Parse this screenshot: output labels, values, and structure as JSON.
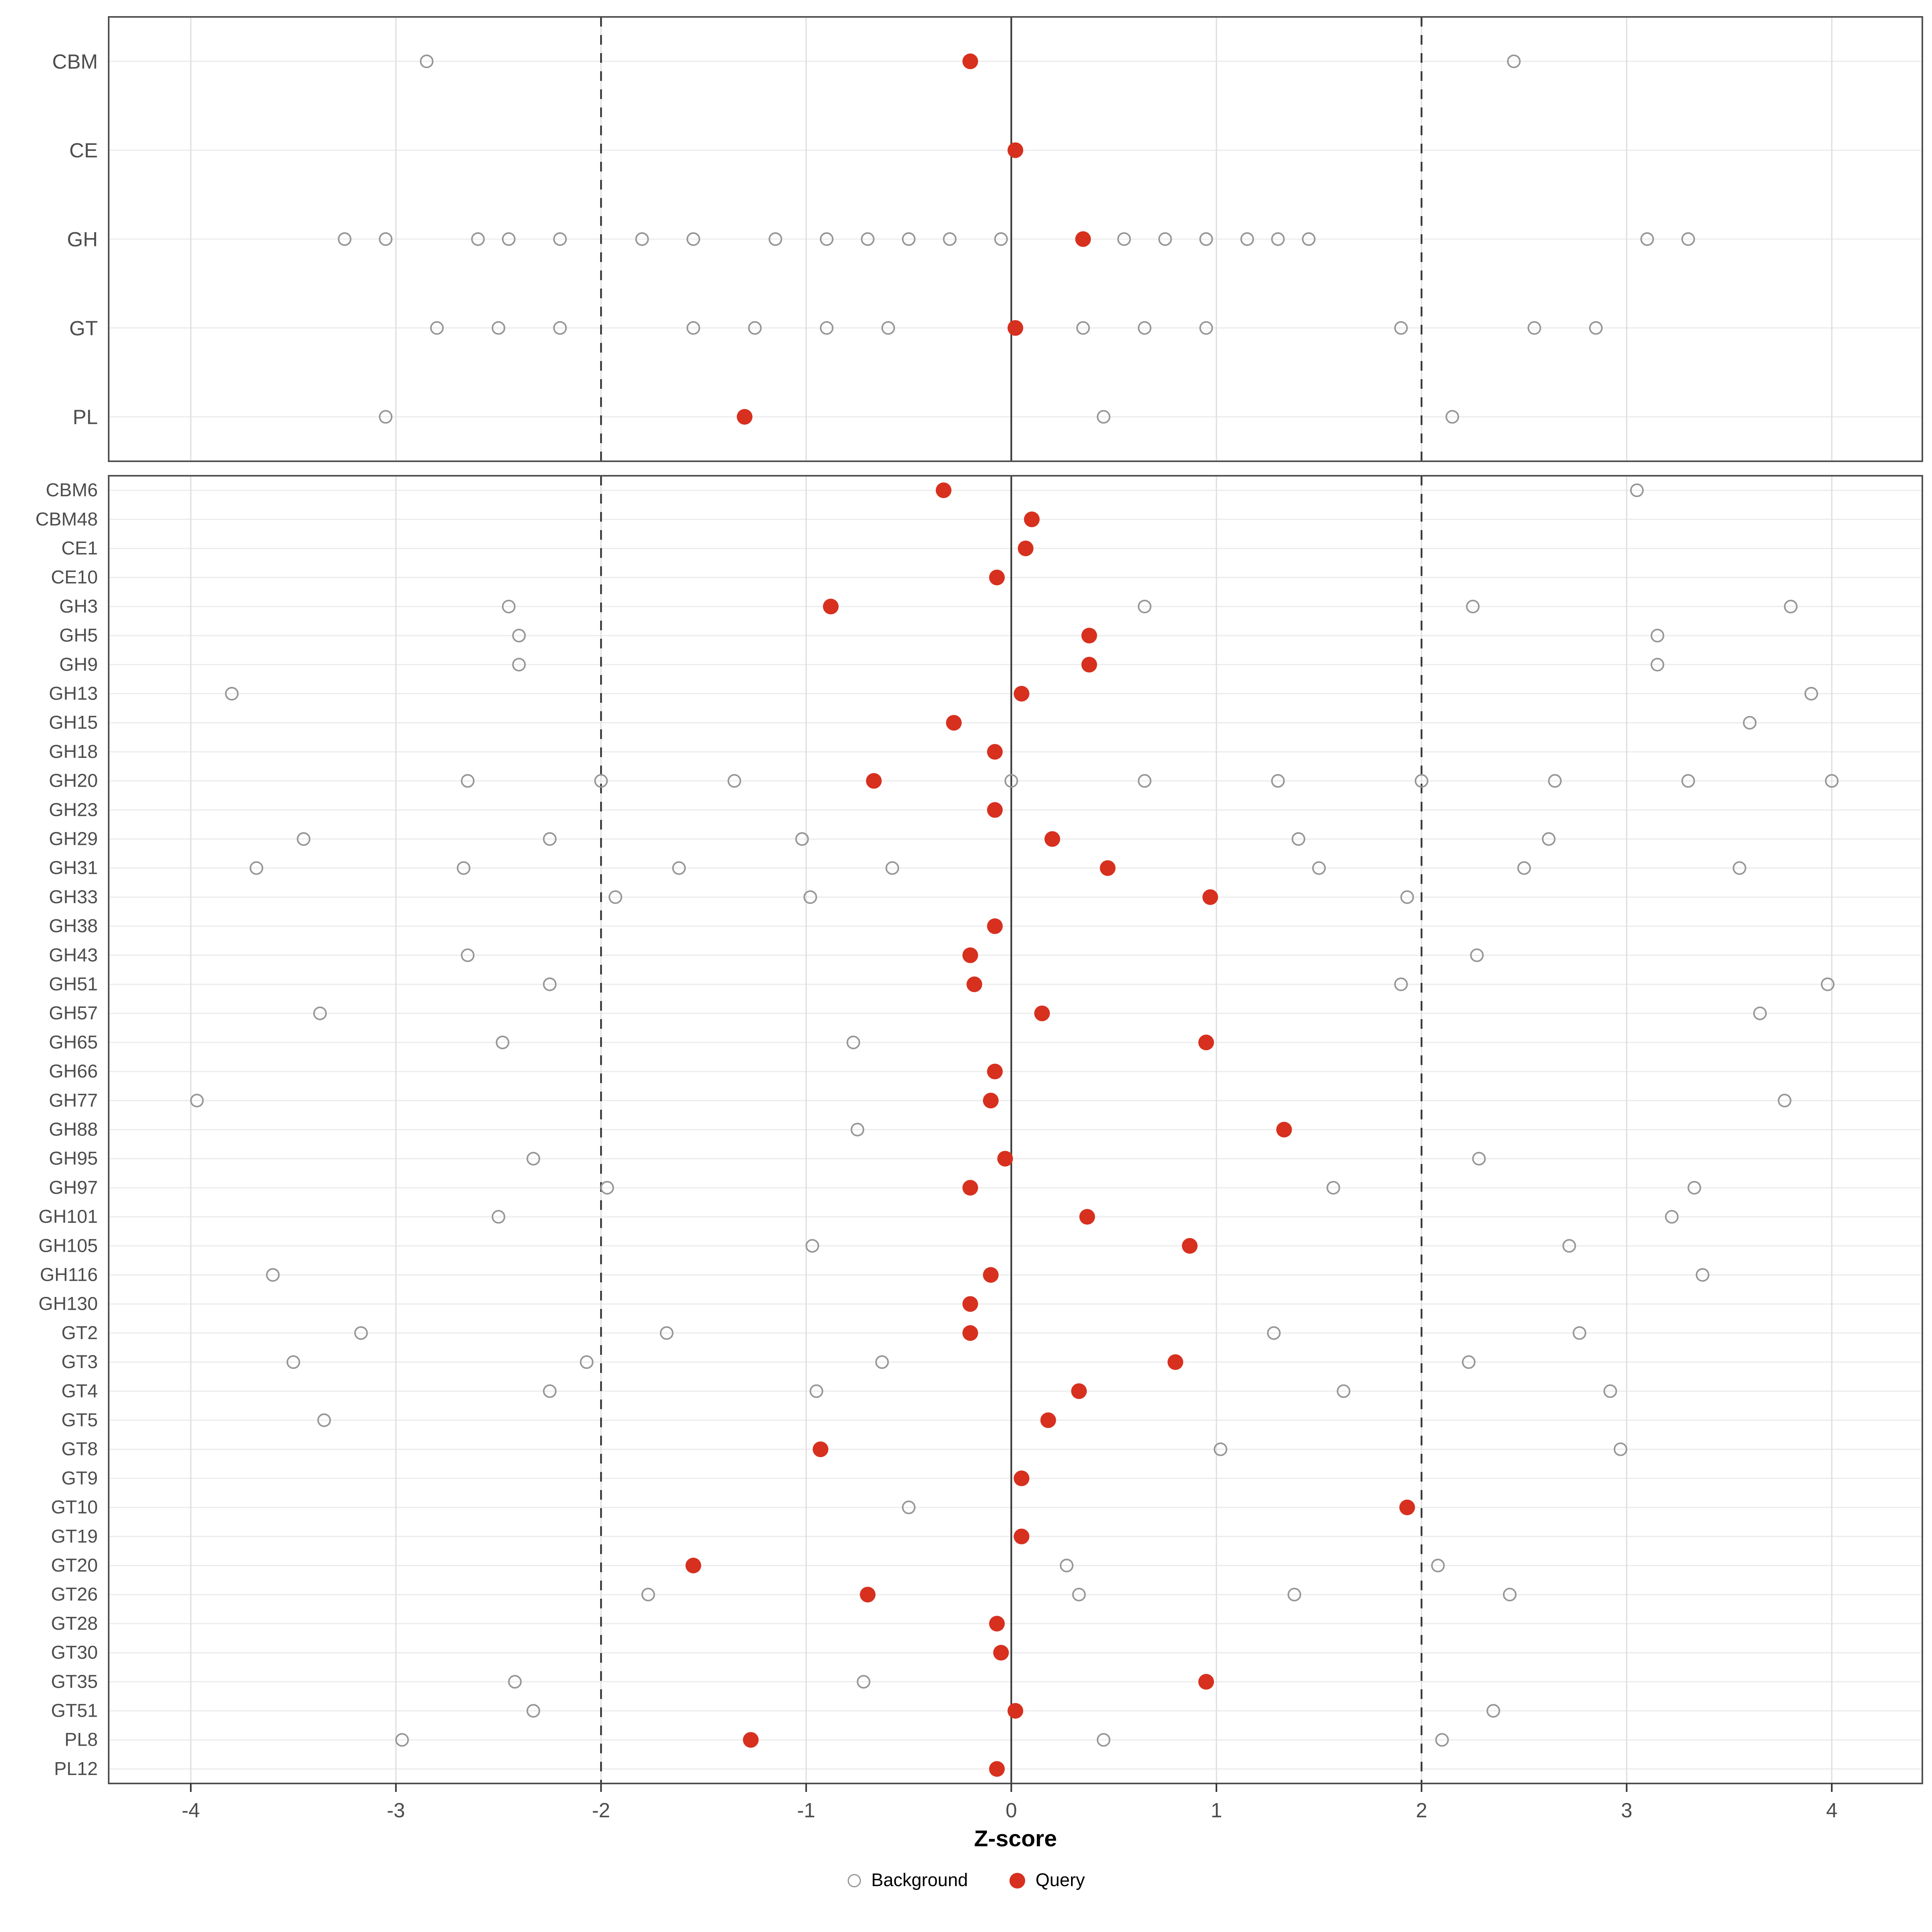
{
  "figure": {
    "colors": {
      "query": "#d7301f",
      "background_stroke": "#969696",
      "grid": "#dedede",
      "row_grid": "#ececec",
      "axis_text": "#4d4d4d",
      "panel_border": "#4d4d4d",
      "ref_line": "#3a3a3a"
    }
  },
  "chart_data": {
    "type": "scatter",
    "title": "",
    "xlabel": "Z-score",
    "ylabel": "",
    "xlim": [
      -4.4,
      4.45
    ],
    "xticks": [
      -4,
      -3,
      -2,
      -1,
      0,
      1,
      2,
      3,
      4
    ],
    "grid": true,
    "legend_position": "bottom",
    "legend_items": [
      {
        "label": "Background",
        "marker": "open-circle"
      },
      {
        "label": "Query",
        "marker": "filled-circle"
      }
    ],
    "reference_lines": {
      "solid": [
        0
      ],
      "dashed": [
        -2,
        2
      ]
    },
    "panels": [
      {
        "name": "family-summary",
        "rows": [
          {
            "label": "CBM",
            "query": -0.2,
            "background": [
              -2.85,
              2.45
            ]
          },
          {
            "label": "CE",
            "query": 0.02,
            "background": []
          },
          {
            "label": "GH",
            "query": 0.35,
            "background": [
              -3.25,
              -3.05,
              -2.6,
              -2.45,
              -2.2,
              -1.8,
              -1.55,
              -1.15,
              -0.9,
              -0.7,
              -0.5,
              -0.3,
              -0.05,
              0.55,
              0.75,
              0.95,
              1.15,
              1.3,
              1.45,
              3.1,
              3.3
            ]
          },
          {
            "label": "GT",
            "query": 0.02,
            "background": [
              -2.8,
              -2.5,
              -2.2,
              -1.55,
              -1.25,
              -0.9,
              -0.6,
              0.35,
              0.65,
              0.95,
              1.9,
              2.55,
              2.85
            ]
          },
          {
            "label": "PL",
            "query": -1.3,
            "background": [
              -3.05,
              0.45,
              2.15
            ]
          }
        ]
      },
      {
        "name": "subfamily-detail",
        "rows": [
          {
            "label": "CBM6",
            "query": -0.33,
            "background": [
              3.05
            ]
          },
          {
            "label": "CBM48",
            "query": 0.1,
            "background": []
          },
          {
            "label": "CE1",
            "query": 0.07,
            "background": []
          },
          {
            "label": "CE10",
            "query": -0.07,
            "background": []
          },
          {
            "label": "GH3",
            "query": -0.88,
            "background": [
              -2.45,
              0.65,
              2.25,
              3.8
            ]
          },
          {
            "label": "GH5",
            "query": 0.38,
            "background": [
              -2.4,
              3.15
            ]
          },
          {
            "label": "GH9",
            "query": 0.38,
            "background": [
              -2.4,
              3.15
            ]
          },
          {
            "label": "GH13",
            "query": 0.05,
            "background": [
              -3.8,
              3.9
            ]
          },
          {
            "label": "GH15",
            "query": -0.28,
            "background": [
              3.6
            ]
          },
          {
            "label": "GH18",
            "query": -0.08,
            "background": []
          },
          {
            "label": "GH20",
            "query": -0.67,
            "background": [
              -2.65,
              -2.0,
              -1.35,
              0.0,
              0.65,
              1.3,
              2.0,
              2.65,
              3.3,
              4.0
            ]
          },
          {
            "label": "GH23",
            "query": -0.08,
            "background": []
          },
          {
            "label": "GH29",
            "query": 0.2,
            "background": [
              -3.45,
              -2.25,
              -1.02,
              1.4,
              2.62
            ]
          },
          {
            "label": "GH31",
            "query": 0.47,
            "background": [
              -3.68,
              -2.67,
              -1.62,
              -0.58,
              1.5,
              2.5,
              3.55
            ]
          },
          {
            "label": "GH33",
            "query": 0.97,
            "background": [
              -1.93,
              -0.98,
              1.93
            ]
          },
          {
            "label": "GH38",
            "query": -0.08,
            "background": []
          },
          {
            "label": "GH43",
            "query": -0.2,
            "background": [
              -2.65,
              2.27
            ]
          },
          {
            "label": "GH51",
            "query": -0.18,
            "background": [
              -2.25,
              1.9,
              3.98
            ]
          },
          {
            "label": "GH57",
            "query": 0.15,
            "background": [
              -3.37,
              3.65
            ]
          },
          {
            "label": "GH65",
            "query": 0.95,
            "background": [
              -2.48,
              -0.77
            ]
          },
          {
            "label": "GH66",
            "query": -0.08,
            "background": []
          },
          {
            "label": "GH77",
            "query": -0.1,
            "background": [
              -3.97,
              3.77
            ]
          },
          {
            "label": "GH88",
            "query": 1.33,
            "background": [
              -0.75
            ]
          },
          {
            "label": "GH95",
            "query": -0.03,
            "background": [
              -2.33,
              2.28
            ]
          },
          {
            "label": "GH97",
            "query": -0.2,
            "background": [
              -1.97,
              1.57,
              3.33
            ]
          },
          {
            "label": "GH101",
            "query": 0.37,
            "background": [
              -2.5,
              3.22
            ]
          },
          {
            "label": "GH105",
            "query": 0.87,
            "background": [
              -0.97,
              2.72
            ]
          },
          {
            "label": "GH116",
            "query": -0.1,
            "background": [
              -3.6,
              3.37
            ]
          },
          {
            "label": "GH130",
            "query": -0.2,
            "background": []
          },
          {
            "label": "GT2",
            "query": -0.2,
            "background": [
              -3.17,
              -1.68,
              1.28,
              2.77
            ]
          },
          {
            "label": "GT3",
            "query": 0.8,
            "background": [
              -3.5,
              -2.07,
              -0.63,
              2.23
            ]
          },
          {
            "label": "GT4",
            "query": 0.33,
            "background": [
              -2.25,
              -0.95,
              1.62,
              2.92
            ]
          },
          {
            "label": "GT5",
            "query": 0.18,
            "background": [
              -3.35
            ]
          },
          {
            "label": "GT8",
            "query": -0.93,
            "background": [
              1.02,
              2.97
            ]
          },
          {
            "label": "GT9",
            "query": 0.05,
            "background": []
          },
          {
            "label": "GT10",
            "query": 1.93,
            "background": [
              -0.5
            ]
          },
          {
            "label": "GT19",
            "query": 0.05,
            "background": []
          },
          {
            "label": "GT20",
            "query": -1.55,
            "background": [
              0.27,
              2.08
            ]
          },
          {
            "label": "GT26",
            "query": -0.7,
            "background": [
              -1.77,
              0.33,
              1.38,
              2.43
            ]
          },
          {
            "label": "GT28",
            "query": -0.07,
            "background": []
          },
          {
            "label": "GT30",
            "query": -0.05,
            "background": []
          },
          {
            "label": "GT35",
            "query": 0.95,
            "background": [
              -2.42,
              -0.72
            ]
          },
          {
            "label": "GT51",
            "query": 0.02,
            "background": [
              -2.33,
              2.35
            ]
          },
          {
            "label": "PL8",
            "query": -1.27,
            "background": [
              -2.97,
              0.45,
              2.1
            ]
          },
          {
            "label": "PL12",
            "query": -0.07,
            "background": []
          }
        ]
      }
    ]
  }
}
